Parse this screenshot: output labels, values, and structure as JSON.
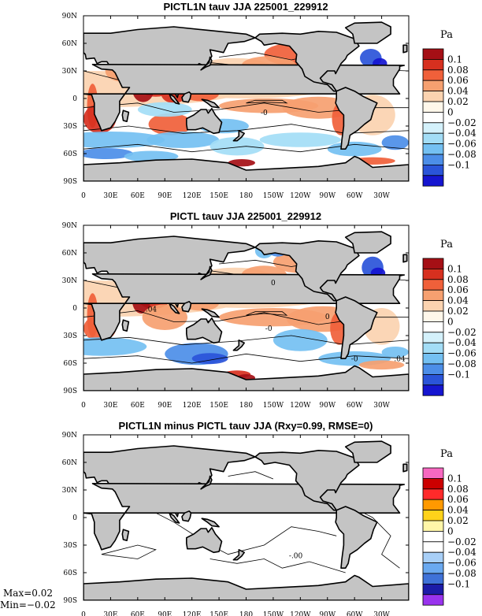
{
  "chart_data": [
    {
      "type": "heatmap",
      "title": "PICTL1N tauv JJA 225001_229912",
      "xticks": [
        "0",
        "30E",
        "60E",
        "90E",
        "120E",
        "150E",
        "180",
        "150W",
        "120W",
        "90W",
        "60W",
        "30W"
      ],
      "yticks": [
        "90N",
        "60N",
        "30N",
        "0",
        "30S",
        "60S",
        "90S"
      ],
      "unit": "Pa",
      "levels": [
        "0.1",
        "0.08",
        "0.06",
        "0.04",
        "0.02",
        "0",
        "−0.02",
        "−0.04",
        "−0.06",
        "−0.08",
        "−0.1"
      ],
      "colors": [
        "#a50f15",
        "#d7301f",
        "#f0603a",
        "#f6a070",
        "#fbd3b0",
        "#fff7ea",
        "#ffffff",
        "#d4f1fb",
        "#a3ddf6",
        "#74c0f2",
        "#4c8ee8",
        "#2a54d9",
        "#1515d0"
      ],
      "contour_labels": [
        "-0"
      ]
    },
    {
      "type": "heatmap",
      "title": "PICTL tauv JJA 225001_229912",
      "xticks": [
        "0",
        "30E",
        "60E",
        "90E",
        "120E",
        "150E",
        "180",
        "150W",
        "120W",
        "90W",
        "60W",
        "30W"
      ],
      "yticks": [
        "90N",
        "60N",
        "30N",
        "0",
        "30S",
        "60S",
        "90S"
      ],
      "unit": "Pa",
      "levels": [
        "0.1",
        "0.08",
        "0.06",
        "0.04",
        "0.02",
        "0",
        "−0.02",
        "−0.04",
        "−0.06",
        "−0.08",
        "−0.1"
      ],
      "colors": [
        "#a50f15",
        "#d7301f",
        "#f0603a",
        "#f6a070",
        "#fbd3b0",
        "#fff7ea",
        "#ffffff",
        "#d4f1fb",
        "#a3ddf6",
        "#74c0f2",
        "#4c8ee8",
        "#2a54d9",
        "#1515d0"
      ],
      "contour_labels": [
        ".04",
        "-0",
        "0",
        "0",
        "-0",
        ".04"
      ]
    },
    {
      "type": "heatmap",
      "title": "PICTL1N minus PICTL tauv JJA (Rxy=0.99, RMSE=0)",
      "xticks": [
        "0",
        "30E",
        "60E",
        "90E",
        "120E",
        "150E",
        "180",
        "150W",
        "120W",
        "90W",
        "60W",
        "30W"
      ],
      "yticks": [
        "90N",
        "60N",
        "30N",
        "0",
        "30S",
        "60S",
        "90S"
      ],
      "unit": "Pa",
      "levels": [
        "0.1",
        "0.08",
        "0.06",
        "0.04",
        "0.02",
        "0",
        "−0.02",
        "−0.04",
        "−0.06",
        "−0.08",
        "−0.1"
      ],
      "colors": [
        "#f768c0",
        "#cc0000",
        "#ff2a2a",
        "#ff9900",
        "#ffd21a",
        "#fff6a8",
        "#ffffff",
        "#ffffff",
        "#a8cff7",
        "#6aa9f0",
        "#3f72d8",
        "#1c1ca8",
        "#9933ee"
      ],
      "contour_labels": [
        "-.00"
      ],
      "max": "Max=0.02",
      "min": "Min=−0.02"
    }
  ]
}
